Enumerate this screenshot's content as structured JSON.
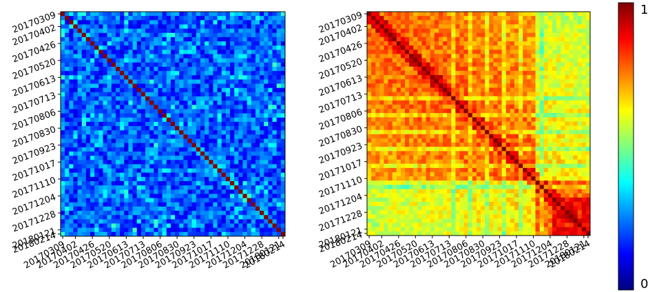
{
  "chart_data": [
    {
      "type": "heatmap",
      "panel": "left",
      "n": 53,
      "diag_value": 1.0,
      "typical_offdiag_range": [
        0.05,
        0.45
      ],
      "tick_labels": [
        "20170309",
        "20170402",
        "20170426",
        "20170520",
        "20170613",
        "20170713",
        "20170806",
        "20170830",
        "20170923",
        "20171017",
        "20171110",
        "20171204",
        "20171228",
        "20180121",
        "20180214"
      ],
      "colormap": "jet",
      "grid": false
    },
    {
      "type": "heatmap",
      "panel": "right",
      "n": 53,
      "diag_value": 1.0,
      "typical_offdiag_range": [
        0.55,
        0.95
      ],
      "tick_labels": [
        "20170309",
        "20170402",
        "20170426",
        "20170520",
        "20170613",
        "20170713",
        "20170806",
        "20170830",
        "20170923",
        "20171017",
        "20171110",
        "20171204",
        "20171228",
        "20180121",
        "20180214"
      ],
      "colormap": "jet",
      "grid": false
    }
  ],
  "colorbar": {
    "min_label": "0",
    "max_label": "1",
    "colormap": "jet",
    "stops": [
      "#00007f",
      "#0000ff",
      "#007fff",
      "#00ffff",
      "#7fff7f",
      "#ffff00",
      "#ff7f00",
      "#ff0000",
      "#7f0000"
    ]
  }
}
